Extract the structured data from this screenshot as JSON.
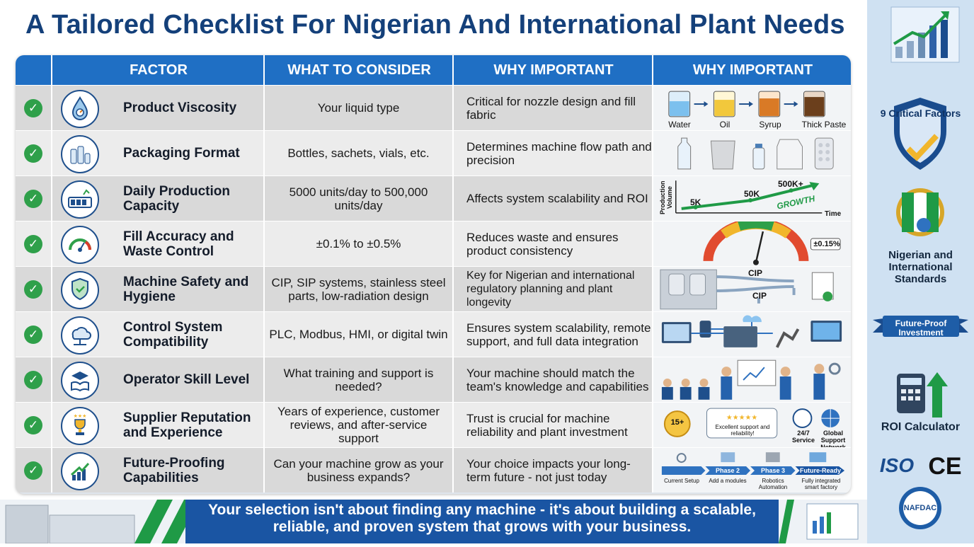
{
  "title": "A Tailored Checklist For Nigerian And International Plant Needs",
  "headers": [
    "FACTOR",
    "WHAT TO CONSIDER",
    "WHY IMPORTANT",
    "WHY IMPORTANT"
  ],
  "rows": [
    {
      "factor": "Product Viscosity",
      "consider": "Your liquid type",
      "why": "Critical for nozzle design and fill fabric",
      "icon": "droplet-gauge-icon"
    },
    {
      "factor": "Packaging Format",
      "consider": "Bottles, sachets, vials, etc.",
      "why": "Determines machine flow path and precision",
      "icon": "bottles-icon"
    },
    {
      "factor": "Daily Production Capacity",
      "consider": "5000 units/day to 500,000 units/day",
      "why": "Affects system scalability and ROI",
      "icon": "counter-icon"
    },
    {
      "factor": "Fill Accuracy and Waste Control",
      "consider": "±0.1% to ±0.5%",
      "why": "Reduces waste and ensures product consistency",
      "icon": "gauge-icon"
    },
    {
      "factor": "Machine Safety and Hygiene",
      "consider": "CIP, SIP systems, stainless steel parts, low-radiation design",
      "why": "Key for Nigerian and international regulatory planning and plant longevity",
      "icon": "shield-hand-icon"
    },
    {
      "factor": "Control System Compatibility",
      "consider": "PLC, Modbus, HMI, or digital twin",
      "why": "Ensures system scalability, remote support, and full data integration",
      "icon": "cloud-network-icon"
    },
    {
      "factor": "Operator Skill Level",
      "consider": "What training and support is needed?",
      "why": "Your machine should match the team's knowledge and capabilities",
      "icon": "graduation-book-icon"
    },
    {
      "factor": "Supplier Reputation and Experience",
      "consider": "Years of experience, customer reviews, and after-service support",
      "why": "Trust is crucial for machine reliability and plant investment",
      "icon": "trophy-icon"
    },
    {
      "factor": "Future-Proofing Capabilities",
      "consider": "Can your machine grow as your business expands?",
      "why": "Your choice impacts your long-term future - not just today",
      "icon": "growth-chart-icon"
    }
  ],
  "visuals": {
    "viscosity": [
      "Water",
      "Oil",
      "Syrup",
      "Thick Paste"
    ],
    "capacity": {
      "ylabel": "Production Volume",
      "xlabel": "Time",
      "points": [
        "5K",
        "50K",
        "500K+"
      ],
      "growth": "GROWTH"
    },
    "accuracy": "±0.15%",
    "safety": [
      "CIP",
      "CIP"
    ],
    "supplier": {
      "years": "15+",
      "review": "Excellent support and reliability!",
      "service": "24/7 Service",
      "global": "Global Support Network"
    },
    "future": {
      "phases": [
        "",
        "Phase 2",
        "Phase 3",
        "Future-Ready"
      ],
      "captions": [
        "Current Setup",
        "Add a modules",
        "Robotics Automation",
        "Fully integrated smart factory"
      ]
    }
  },
  "right_panel": {
    "badge": "9 Critical Factors",
    "standards": "Nigerian and International Standards",
    "ribbon": "Future-Proof Investment",
    "roi": "ROI Calculator",
    "iso": "ISO",
    "ce": "CE",
    "nafdac": "NAFDAC"
  },
  "footer": "Your selection isn't about finding any machine - it's about building a scalable, reliable, and proven system that grows with your business.",
  "colors": {
    "header": "#1f6fc4",
    "title": "#14407a",
    "check": "#2fa04a",
    "banner": "#1a55a3",
    "green": "#1f9a46"
  }
}
